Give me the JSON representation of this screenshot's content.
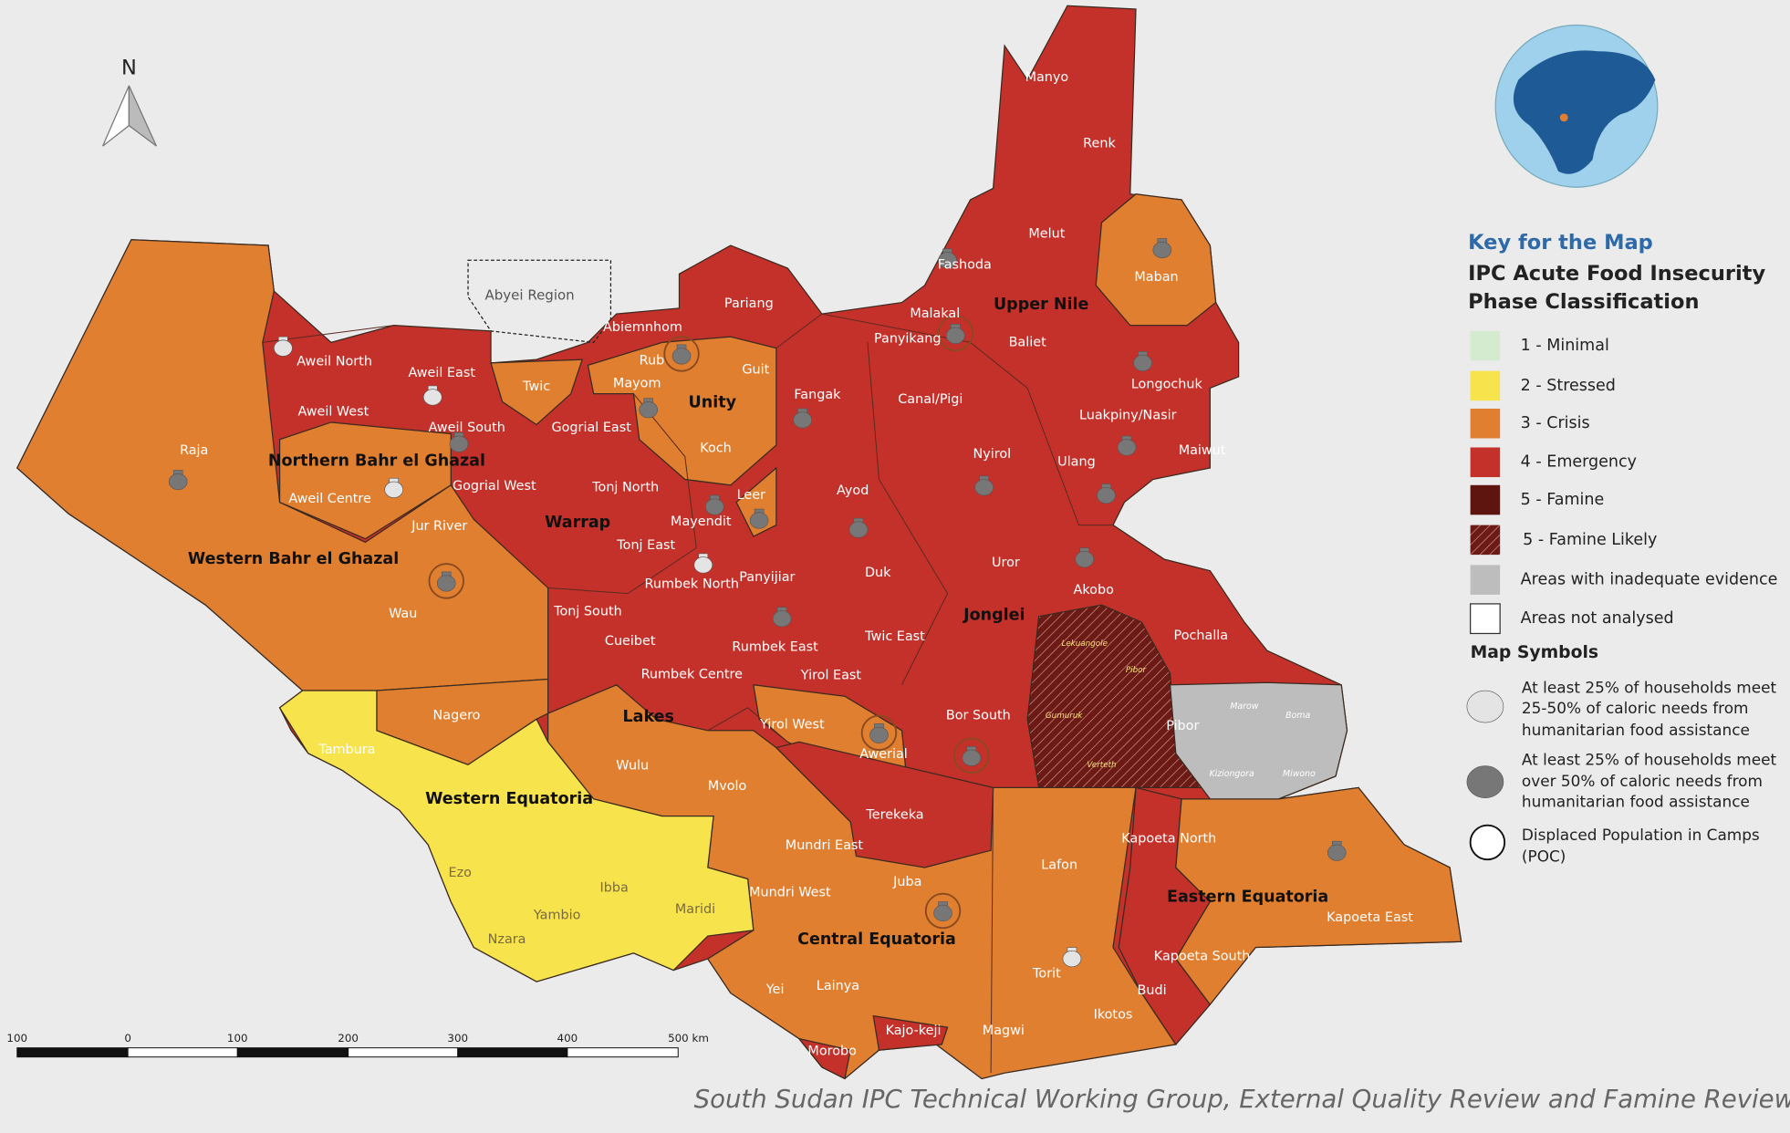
{
  "map": {
    "north_label": "N",
    "abyei_label": "Abyei Region",
    "states": [
      "Upper Nile",
      "Unity",
      "Northern Bahr el Ghazal",
      "Warrap",
      "Western Bahr el Ghazal",
      "Jonglei",
      "Lakes",
      "Western Equatoria",
      "Central Equatoria",
      "Eastern Equatoria"
    ],
    "counties": [
      "Manyo",
      "Renk",
      "Melut",
      "Fashoda",
      "Maban",
      "Malakal",
      "Panyikang",
      "Baliet",
      "Longochuk",
      "Luakpiny/Nasir",
      "Maiwut",
      "Ulang",
      "Nyirol",
      "Pariang",
      "Abiemnhom",
      "Rub",
      "Guit",
      "Mayom",
      "Fangak",
      "Canal/Pigi",
      "Koch",
      "Leer",
      "Mayendit",
      "Ayod",
      "Panyijiar",
      "Duk",
      "Uror",
      "Akobo",
      "Pochalla",
      "Twic East",
      "Bor South",
      "Twic",
      "Aweil North",
      "Aweil East",
      "Aweil West",
      "Aweil South",
      "Aweil Centre",
      "Gogrial East",
      "Gogrial West",
      "Tonj North",
      "Tonj East",
      "Tonj South",
      "Raja",
      "Jur River",
      "Wau",
      "Rumbek North",
      "Cueibet",
      "Rumbek East",
      "Rumbek Centre",
      "Yirol East",
      "Yirol West",
      "Awerial",
      "Nagero",
      "Tambura",
      "Wulu",
      "Mvolo",
      "Terekeka",
      "Mundri East",
      "Mundri West",
      "Juba",
      "Ezo",
      "Ibba",
      "Yambio",
      "Maridi",
      "Nzara",
      "Yei",
      "Lainya",
      "Morobo",
      "Kajo-keji",
      "Lafon",
      "Torit",
      "Magwi",
      "Ikotos",
      "Kapoeta North",
      "Kapoeta East",
      "Kapoeta South",
      "Budi",
      "Pibor"
    ],
    "pibor_subareas": [
      "Marow",
      "Boma",
      "Kiziongora",
      "Miwono"
    ],
    "famine_likely_areas": [
      "Lekuangole",
      "Pibor",
      "Gumuruk",
      "Verteth"
    ]
  },
  "legend": {
    "heading": "Key for the Map",
    "title_lines": [
      "IPC Acute Food Insecurity",
      "Phase Classification"
    ],
    "phases": [
      {
        "label": "1 - Minimal",
        "color": "#d4ebd0"
      },
      {
        "label": "2 - Stressed",
        "color": "#f7e34b"
      },
      {
        "label": "3 - Crisis",
        "color": "#e07f30"
      },
      {
        "label": "4 - Emergency",
        "color": "#c4312a"
      },
      {
        "label": "5 - Famine",
        "color": "#5e1510"
      },
      {
        "label": "5 - Famine Likely",
        "color": "#6b1a15"
      },
      {
        "label": "Areas with inadequate evidence",
        "color": "#bdbdbd"
      },
      {
        "label": "Areas not analysed",
        "color": "#ffffff"
      }
    ],
    "symbols_heading": "Map Symbols",
    "symbols": [
      [
        "At least 25% of households meet",
        "25-50% of caloric needs from",
        "humanitarian food assistance"
      ],
      [
        "At least 25% of households meet",
        "over 50% of caloric needs from",
        "humanitarian food assistance"
      ],
      [
        "Displaced Population in Camps",
        "(POC)"
      ]
    ]
  },
  "scale_bar": [
    "100",
    "0",
    "100",
    "200",
    "300",
    "400",
    "500 km"
  ],
  "source": "South Sudan IPC Technical Working Group, External Quality Review and Famine Review"
}
